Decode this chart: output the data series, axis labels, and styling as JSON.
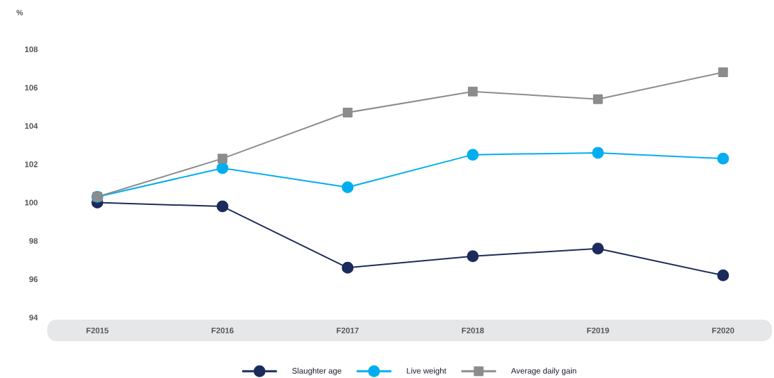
{
  "chart_data": {
    "type": "line",
    "ylabel": "%",
    "categories": [
      "F2015",
      "F2016",
      "F2017",
      "F2018",
      "F2019",
      "F2020"
    ],
    "series": [
      {
        "name": "Slaughter age",
        "color": "#1b2b5b",
        "marker": "circle",
        "values": [
          100.0,
          99.8,
          96.6,
          97.2,
          97.6,
          96.2
        ]
      },
      {
        "name": "Live weight",
        "color": "#00aeef",
        "marker": "circle",
        "values": [
          100.3,
          101.8,
          100.8,
          102.5,
          102.6,
          102.3
        ]
      },
      {
        "name": "Average daily gain",
        "color": "#8c8c8c",
        "marker": "square",
        "values": [
          100.3,
          102.3,
          104.7,
          105.8,
          105.4,
          106.8
        ]
      }
    ],
    "ylim": [
      94,
      108
    ],
    "yticks": [
      94,
      96,
      98,
      100,
      102,
      104,
      106,
      108
    ],
    "grid": false,
    "legend": "bottom",
    "line_style": "solid"
  }
}
